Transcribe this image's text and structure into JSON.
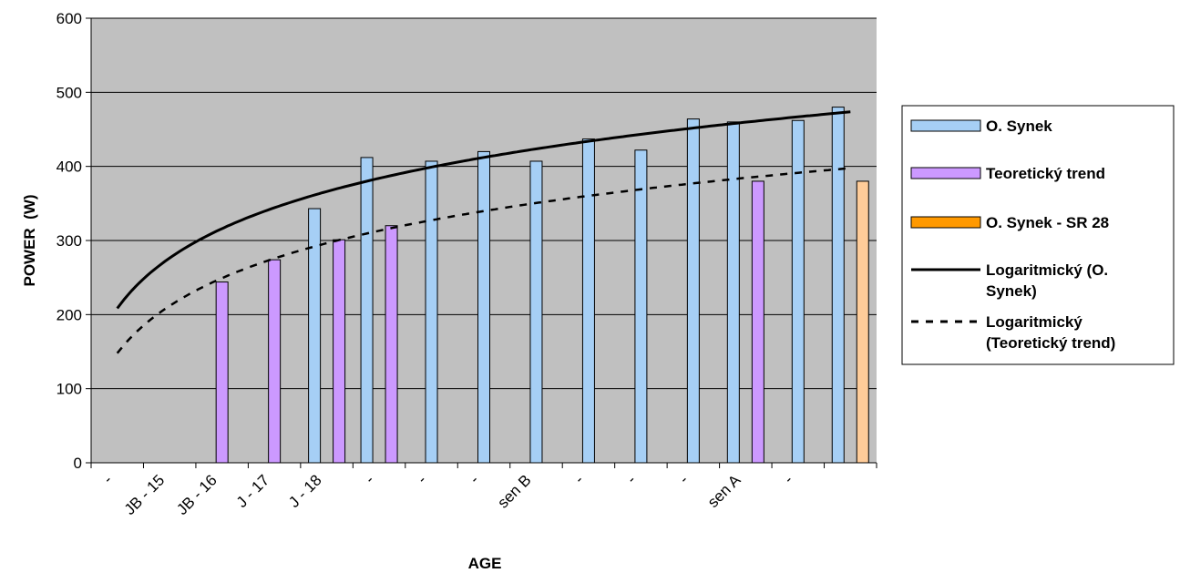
{
  "chart_data": {
    "type": "bar",
    "title": "",
    "xlabel": "AGE",
    "ylabel": "POWER  (W)",
    "ylim": [
      0,
      600
    ],
    "yticks": [
      0,
      100,
      200,
      300,
      400,
      500,
      600
    ],
    "grid": true,
    "legend_position": "right",
    "categories": [
      "-",
      "JB - 15",
      "JB - 16",
      "J - 17",
      "J - 18",
      "-",
      "-",
      "-",
      "sen B",
      "-",
      "-",
      "-",
      "sen A",
      "-",
      ""
    ],
    "series": [
      {
        "name": "O. Synek",
        "color": "#a6cff5",
        "values": [
          null,
          null,
          null,
          null,
          343,
          412,
          407,
          420,
          407,
          437,
          422,
          464,
          460,
          462,
          480
        ]
      },
      {
        "name": "Teoretický trend",
        "color": "#cc99ff",
        "values": [
          null,
          null,
          244,
          274,
          301,
          320,
          null,
          null,
          null,
          null,
          null,
          null,
          380,
          null,
          null
        ]
      },
      {
        "name": "O. Synek - SR 28",
        "color": "#ffcc99",
        "legend_color": "#ff9900",
        "values": [
          null,
          null,
          null,
          null,
          null,
          null,
          null,
          null,
          null,
          null,
          null,
          null,
          null,
          null,
          380
        ]
      }
    ],
    "trendlines": [
      {
        "name": "Logaritmický (O. Synek)",
        "style": "solid"
      },
      {
        "name": "Logaritmický (Teoretický trend)",
        "style": "dashed"
      }
    ],
    "colors": {
      "plot_background": "#c0c0c0",
      "gridline": "#000000"
    }
  }
}
